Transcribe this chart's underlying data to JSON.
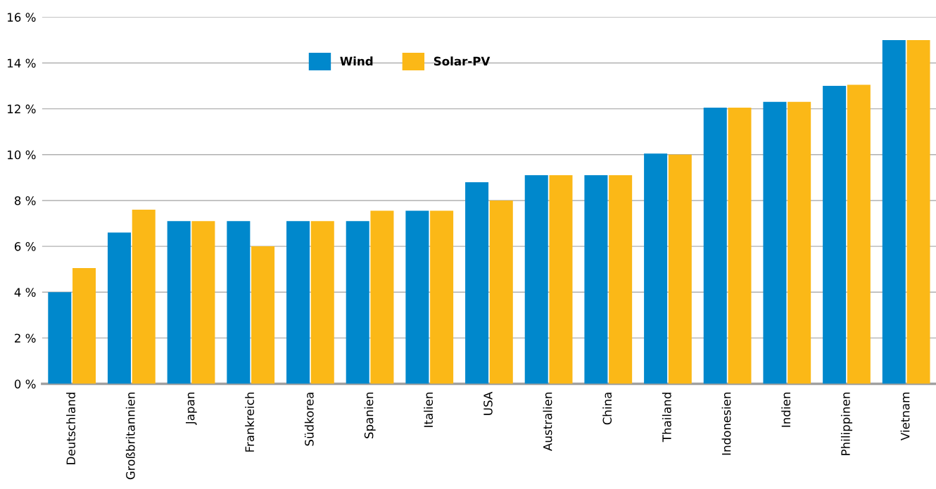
{
  "chart_data": {
    "type": "bar",
    "categories": [
      "Deutschland",
      "Großbritannien",
      "Japan",
      "Frankreich",
      "Südkorea",
      "Spanien",
      "Italien",
      "USA",
      "Australien",
      "China",
      "Thailand",
      "Indonesien",
      "Indien",
      "Philippinen",
      "Vietnam"
    ],
    "series": [
      {
        "name": "Wind",
        "color": "#0088cc",
        "values": [
          4.0,
          6.6,
          7.1,
          7.1,
          7.1,
          7.1,
          7.55,
          8.8,
          9.1,
          9.1,
          10.05,
          12.05,
          12.3,
          13.0,
          15.0
        ]
      },
      {
        "name": "Solar-PV",
        "color": "#fbb817",
        "values": [
          5.05,
          7.6,
          7.1,
          6.0,
          7.1,
          7.55,
          7.55,
          8.0,
          9.1,
          9.1,
          10.0,
          12.05,
          12.3,
          13.05,
          15.0
        ]
      }
    ],
    "ylim": [
      0,
      16
    ],
    "yticks": [
      {
        "value": 0,
        "label": "0 %"
      },
      {
        "value": 2,
        "label": "2 %"
      },
      {
        "value": 4,
        "label": "4 %"
      },
      {
        "value": 6,
        "label": "6 %"
      },
      {
        "value": 8,
        "label": "8 %"
      },
      {
        "value": 10,
        "label": "10 %"
      },
      {
        "value": 12,
        "label": "12 %"
      },
      {
        "value": 14,
        "label": "14 %"
      },
      {
        "value": 16,
        "label": "16 %"
      }
    ],
    "grid": "y",
    "legend": "top"
  }
}
